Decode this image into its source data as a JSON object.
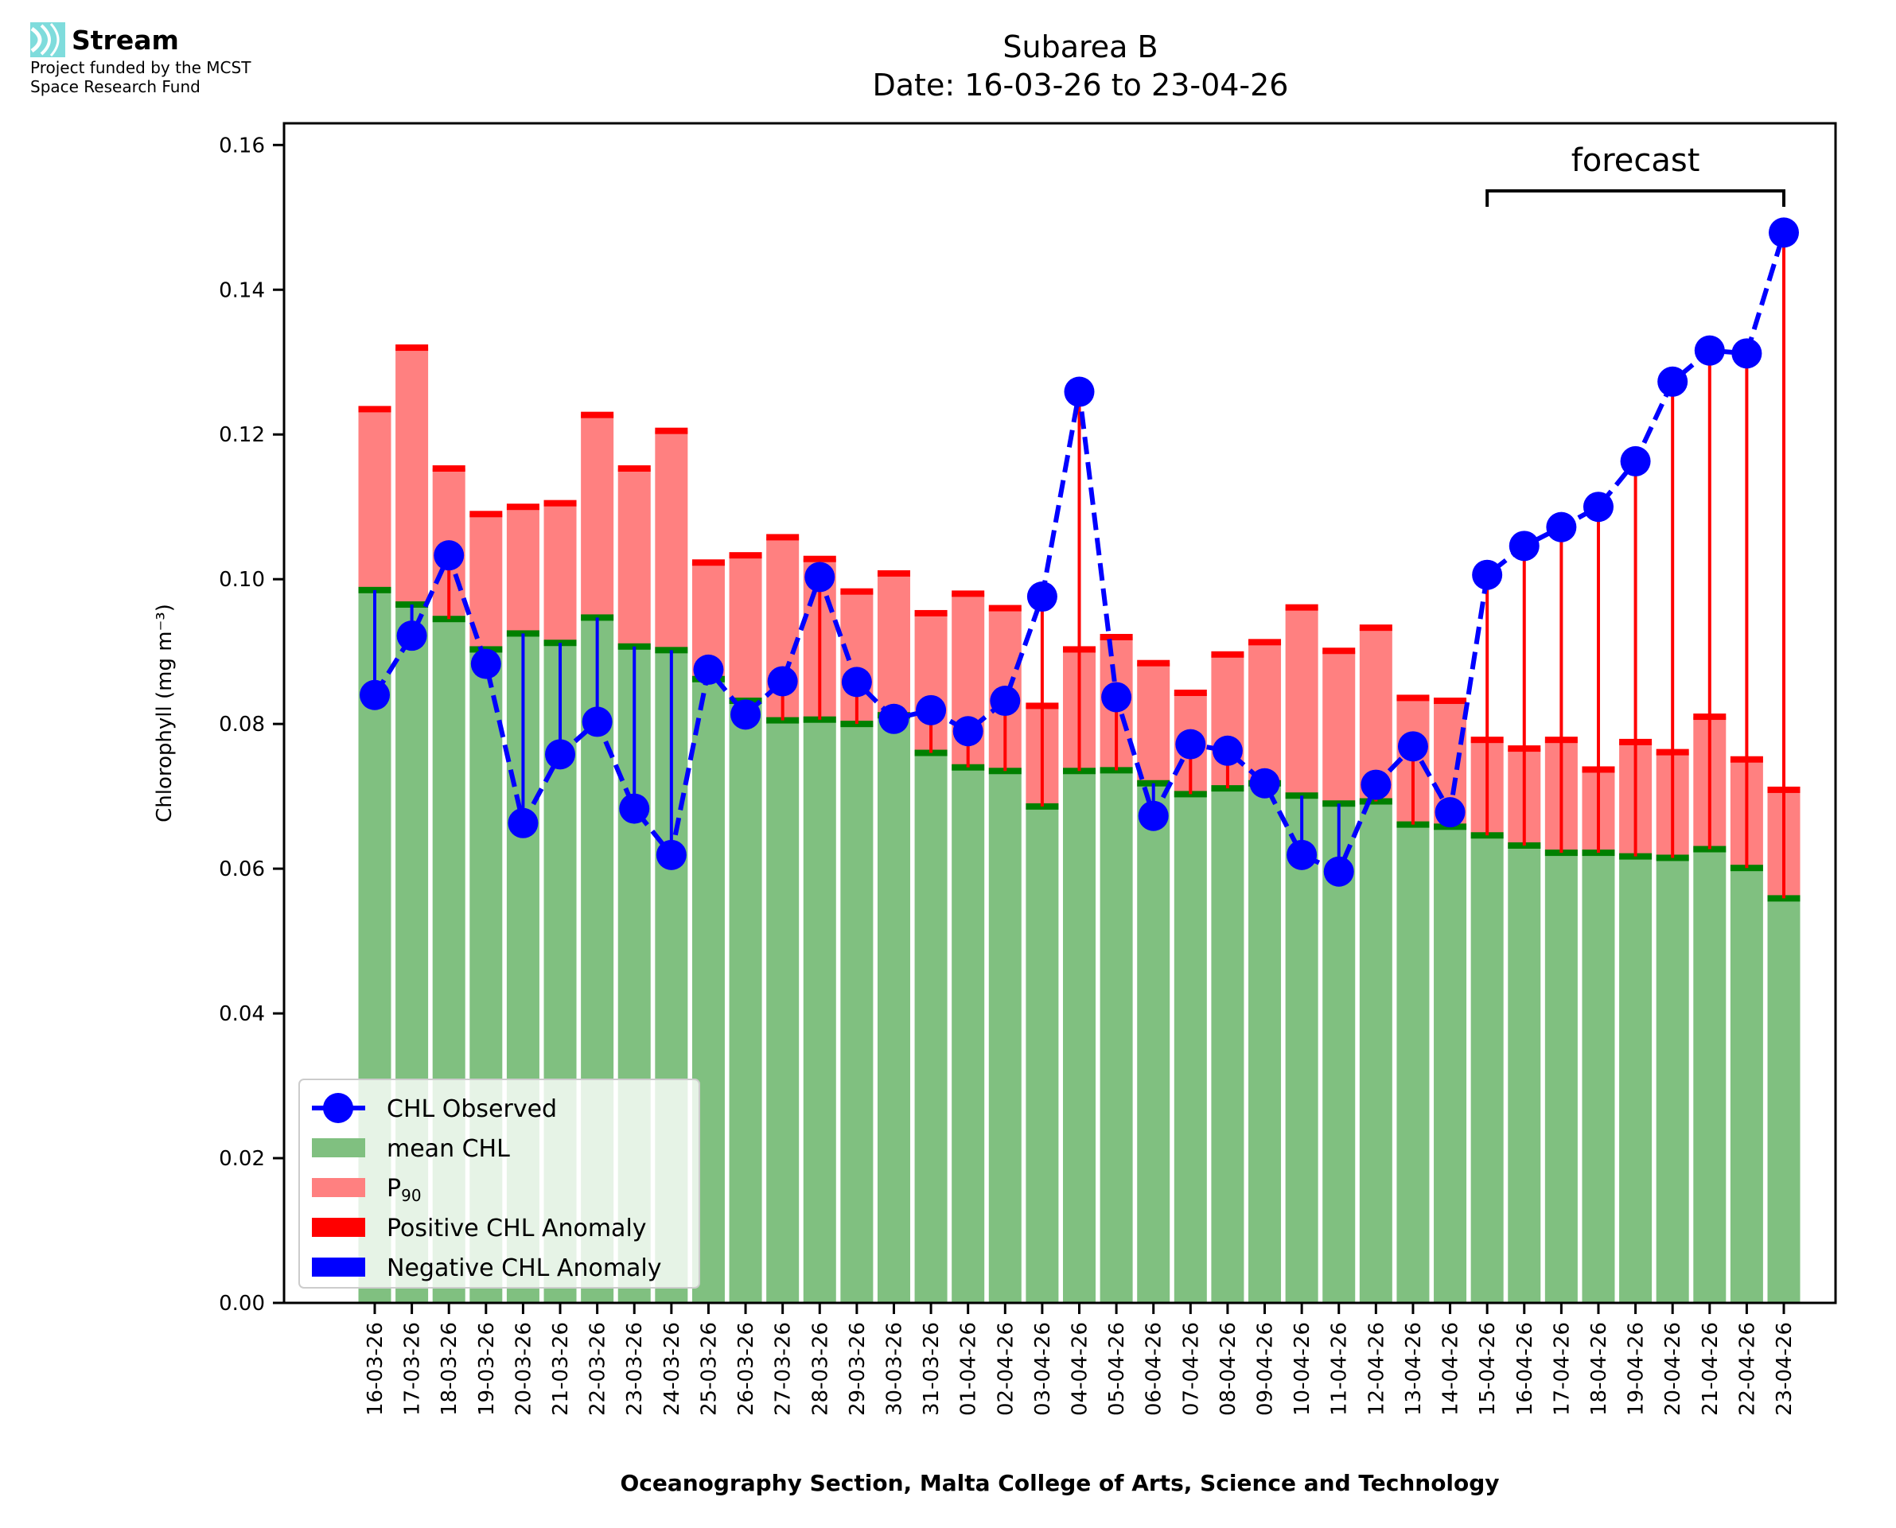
{
  "logo": {
    "name": "Stream",
    "funding_line1": "Project funded by the MCST",
    "funding_line2": "Space Research Fund",
    "icon": "stream-waves-icon",
    "icon_color": "#7fdcdc"
  },
  "chart_data": {
    "type": "bar",
    "title": "Subarea B",
    "subtitle": "Date: 16-03-26 to 23-04-26",
    "xlabel": "Oceanography Section, Malta College of Arts, Science and Technology",
    "ylabel": "Chlorophyll (mg m⁻³)",
    "ylim": [
      0,
      0.163
    ],
    "yticks": [
      "0.00",
      "0.02",
      "0.04",
      "0.06",
      "0.08",
      "0.10",
      "0.12",
      "0.14",
      "0.16"
    ],
    "ytick_values": [
      0,
      0.02,
      0.04,
      0.06,
      0.08,
      0.1,
      0.12,
      0.14,
      0.16
    ],
    "grid": false,
    "legend_position": "lower-left",
    "annotation": {
      "text": "forecast",
      "from": "15-04-26",
      "to": "23-04-26"
    },
    "categories": [
      "16-03-26",
      "17-03-26",
      "18-03-26",
      "19-03-26",
      "20-03-26",
      "21-03-26",
      "22-03-26",
      "23-03-26",
      "24-03-26",
      "25-03-26",
      "26-03-26",
      "27-03-26",
      "28-03-26",
      "29-03-26",
      "30-03-26",
      "31-03-26",
      "01-04-26",
      "02-04-26",
      "03-04-26",
      "04-04-26",
      "05-04-26",
      "06-04-26",
      "07-04-26",
      "08-04-26",
      "09-04-26",
      "10-04-26",
      "11-04-26",
      "12-04-26",
      "13-04-26",
      "14-04-26",
      "15-04-26",
      "16-04-26",
      "17-04-26",
      "18-04-26",
      "19-04-26",
      "20-04-26",
      "21-04-26",
      "22-04-26",
      "23-04-26"
    ],
    "series": [
      {
        "name": "mean CHL",
        "kind": "bar",
        "color": "#80c080",
        "values": [
          0.0985,
          0.0965,
          0.0945,
          0.0903,
          0.0925,
          0.0912,
          0.0947,
          0.0907,
          0.0902,
          0.0862,
          0.0832,
          0.0805,
          0.0806,
          0.08,
          0.0812,
          0.076,
          0.074,
          0.0735,
          0.0686,
          0.0735,
          0.0736,
          0.0718,
          0.0703,
          0.0711,
          0.0718,
          0.0701,
          0.069,
          0.0693,
          0.0661,
          0.0658,
          0.0646,
          0.0632,
          0.0622,
          0.0622,
          0.0617,
          0.0615,
          0.0627,
          0.0601,
          0.0559
        ]
      },
      {
        "name": "P90",
        "kind": "bar",
        "color": "#ff8080",
        "values": [
          0.1235,
          0.132,
          0.1153,
          0.109,
          0.11,
          0.1105,
          0.1227,
          0.1153,
          0.1205,
          0.1023,
          0.1033,
          0.1058,
          0.1028,
          0.0983,
          0.1008,
          0.0953,
          0.098,
          0.096,
          0.0825,
          0.0903,
          0.092,
          0.0884,
          0.0843,
          0.0896,
          0.0913,
          0.0961,
          0.0901,
          0.0933,
          0.0836,
          0.0832,
          0.0778,
          0.0766,
          0.0778,
          0.0737,
          0.0775,
          0.0761,
          0.081,
          0.0751,
          0.0709
        ]
      },
      {
        "name": "CHL Observed",
        "kind": "line",
        "color": "#0000ff",
        "values": [
          0.084,
          0.0922,
          0.1033,
          0.0883,
          0.0663,
          0.0758,
          0.0803,
          0.0683,
          0.0619,
          0.0875,
          0.0813,
          0.0859,
          0.1003,
          0.0858,
          0.0807,
          0.0819,
          0.079,
          0.0832,
          0.0976,
          0.1259,
          0.0837,
          0.0673,
          0.0772,
          0.0763,
          0.0718,
          0.0619,
          0.0596,
          0.0716,
          0.0769,
          0.0678,
          0.1006,
          0.1046,
          0.1072,
          0.11,
          0.1163,
          0.1273,
          0.1316,
          0.1312,
          0.1479
        ]
      }
    ],
    "legend": [
      {
        "label": "CHL Observed",
        "swatch": "line-marker",
        "color": "#0000ff"
      },
      {
        "label": "mean CHL",
        "swatch": "patch",
        "color": "#80c080"
      },
      {
        "label": "P",
        "sub": "90",
        "swatch": "patch",
        "color": "#ff8080"
      },
      {
        "label": "Positive CHL Anomaly",
        "swatch": "patch",
        "color": "#ff0000"
      },
      {
        "label": "Negative CHL Anomaly",
        "swatch": "patch",
        "color": "#0000ff"
      }
    ],
    "colors": {
      "mean_edge": "#008000",
      "p90_edge": "#ff0000",
      "pos_anomaly": "#ff0000",
      "neg_anomaly": "#0000ff"
    }
  }
}
